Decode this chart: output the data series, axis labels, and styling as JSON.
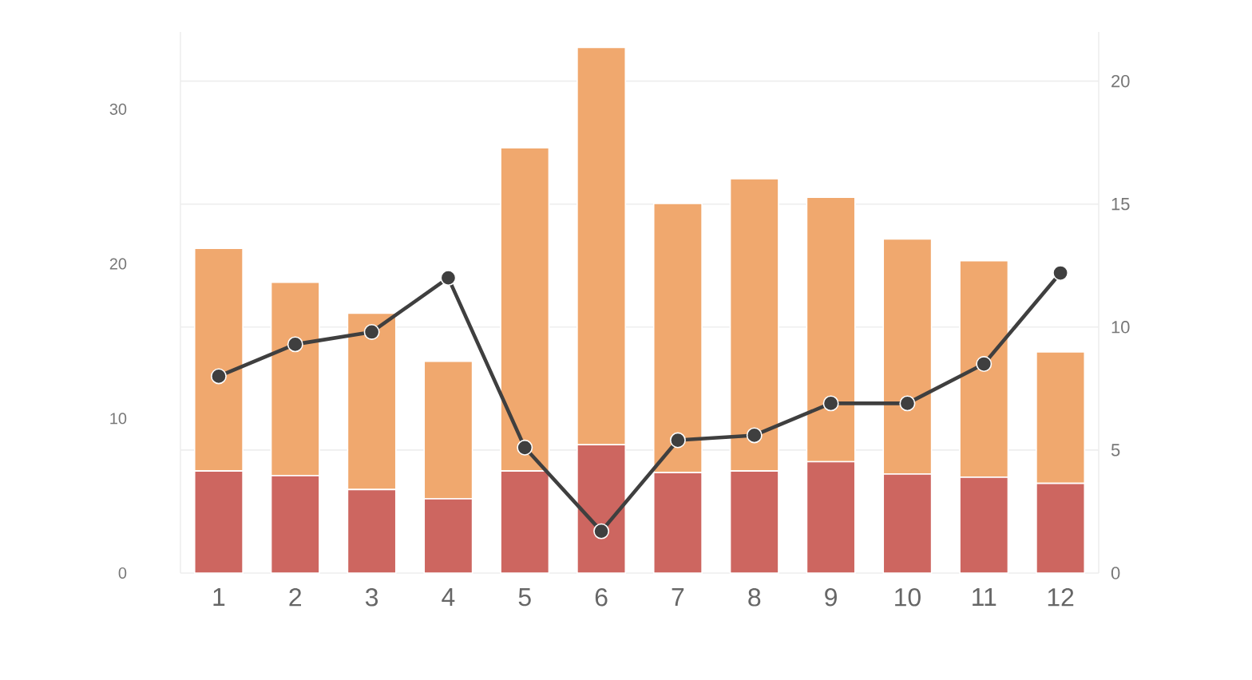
{
  "chart_data": {
    "type": "bar",
    "stacked": true,
    "categories": [
      "1",
      "2",
      "3",
      "4",
      "5",
      "6",
      "7",
      "8",
      "9",
      "10",
      "11",
      "12"
    ],
    "series": [
      {
        "color": "#cd6660",
        "values": [
          6.6,
          6.3,
          5.4,
          4.8,
          6.6,
          8.3,
          6.5,
          6.6,
          7.2,
          6.4,
          6.2,
          5.8
        ]
      },
      {
        "color": "#f0a86e",
        "values": [
          14.4,
          12.5,
          11.4,
          8.9,
          20.9,
          25.7,
          17.4,
          18.9,
          17.1,
          15.2,
          14.0,
          8.5
        ]
      },
      {
        "type": "line",
        "axis": "y2",
        "color": "#3f3f3f",
        "values": [
          8.0,
          9.3,
          9.8,
          12.0,
          5.1,
          1.7,
          5.4,
          5.6,
          6.9,
          6.9,
          8.5,
          12.2
        ]
      }
    ],
    "ylim": [
      0,
      35
    ],
    "yticks": [
      0,
      10,
      20,
      30
    ],
    "y2lim": [
      0,
      22
    ],
    "y2ticks": [
      0,
      5,
      10,
      15,
      20
    ],
    "grid": "y",
    "marker": "circle"
  }
}
